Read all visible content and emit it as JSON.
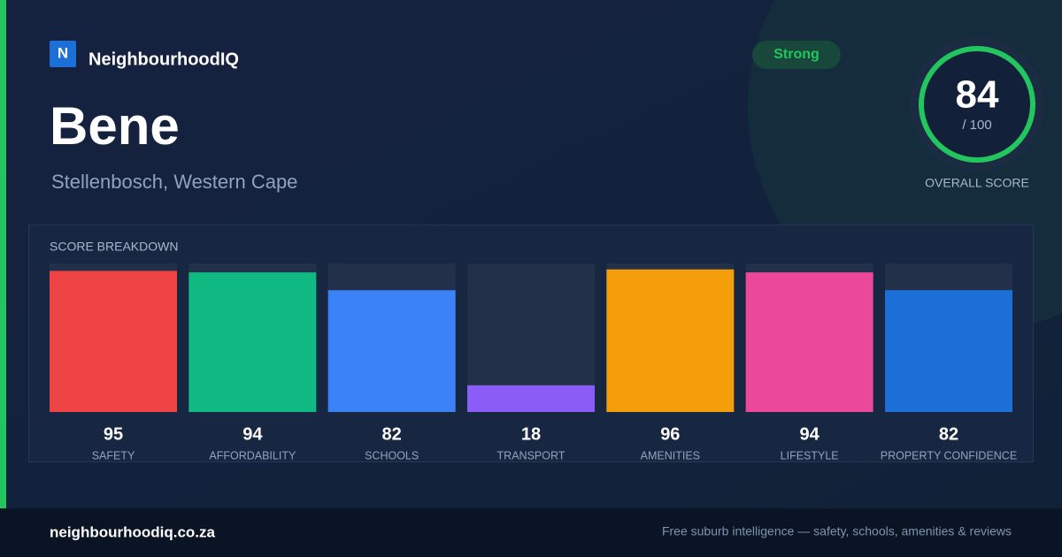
{
  "brand": {
    "logo": "N",
    "name": "NeighbourhoodIQ"
  },
  "suburb": "Bene",
  "location": "Stellenbosch, Western Cape",
  "badge": "Strong",
  "overall": {
    "score": 84,
    "out_of": "/ 100",
    "label": "OVERALL SCORE"
  },
  "chart_data": {
    "type": "bar",
    "title": "SCORE BREAKDOWN",
    "categories": [
      "SAFETY",
      "AFFORDABILITY",
      "SCHOOLS",
      "TRANSPORT",
      "AMENITIES",
      "LIFESTYLE",
      "PROPERTY CONFIDENCE"
    ],
    "values": [
      95,
      94,
      82,
      18,
      96,
      94,
      82
    ],
    "colors": [
      "#ef4444",
      "#10b981",
      "#3b82f6",
      "#8b5cf6",
      "#f59e0b",
      "#ec4899",
      "#1d6fd8"
    ],
    "ylim": [
      0,
      100
    ]
  },
  "footer": {
    "site": "neighbourhoodiq.co.za",
    "tagline": "Free suburb intelligence — safety, schools, amenities & reviews"
  }
}
